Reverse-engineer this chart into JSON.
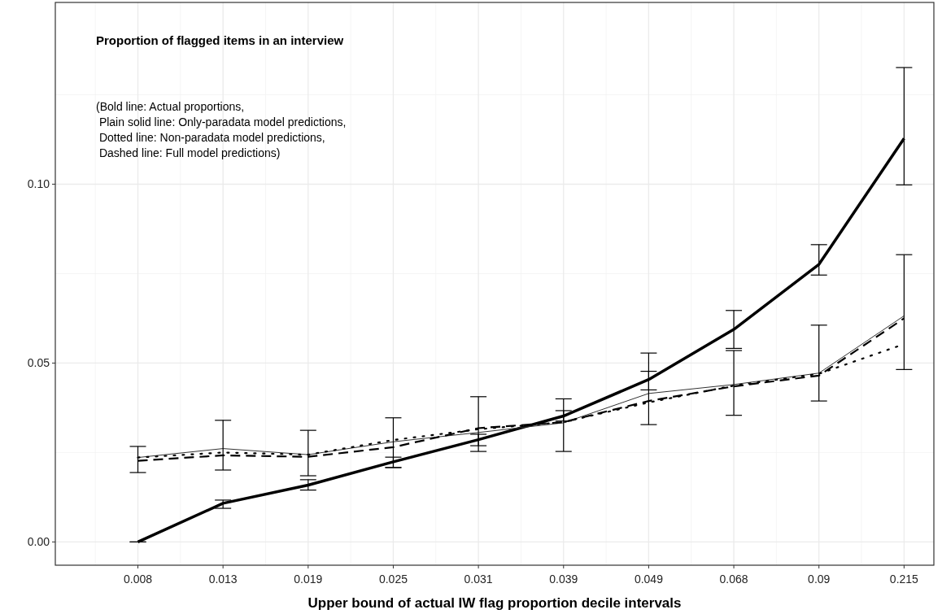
{
  "chart_data": {
    "type": "line",
    "title": "Proportion of flagged items in an interview",
    "annotations": [
      "(Bold line: Actual proportions,\n Plain solid line: Only-paradata model predictions,\n Dotted line: Non-paradata model predictions,\n Dashed line: Full model predictions)"
    ],
    "xlabel": "Upper bound of actual IW flag proportion decile intervals",
    "categories": [
      "0.008",
      "0.013",
      "0.019",
      "0.025",
      "0.031",
      "0.039",
      "0.049",
      "0.068",
      "0.09",
      "0.215"
    ],
    "ylim": [
      -0.0065,
      0.1508
    ],
    "yticks": [
      {
        "value": 0,
        "label": "0.00"
      },
      {
        "value": 0.05,
        "label": "0.05"
      },
      {
        "value": 0.1,
        "label": "0.10"
      }
    ],
    "grid": true,
    "series": [
      {
        "color": "#000000",
        "line_style": "solid",
        "values": [
          0,
          0.0108,
          0.0159,
          0.0224,
          0.0286,
          0.0352,
          0.0454,
          0.0594,
          0.0776,
          0.1128
        ],
        "errors": [
          [
            0,
            0
          ],
          [
            0.0094,
            0.0117
          ],
          [
            0.0145,
            0.0174
          ],
          [
            0.0208,
            0.0237
          ],
          [
            0.0269,
            0.0301
          ],
          [
            0.0338,
            0.0367
          ],
          [
            0.0425,
            0.0477
          ],
          [
            0.0541,
            0.0647
          ],
          [
            0.0746,
            0.0831
          ],
          [
            0.0998,
            0.1326
          ]
        ]
      },
      {
        "color": "#333333",
        "line_style": "solid",
        "values": [
          0.0236,
          0.0261,
          0.0244,
          0.028,
          0.0306,
          0.0333,
          0.0415,
          0.044,
          0.0472,
          0.0632
        ],
        "errors": [
          [
            0.0194,
            0.0267
          ],
          [
            0.0201,
            0.034
          ],
          [
            0.0185,
            0.0312
          ],
          [
            0.0208,
            0.0347
          ],
          [
            0.0253,
            0.0406
          ],
          [
            0.0253,
            0.04
          ],
          [
            0.0328,
            0.0528
          ],
          [
            0.0354,
            0.0535
          ],
          [
            0.0394,
            0.0606
          ],
          [
            0.0482,
            0.0803
          ]
        ]
      },
      {
        "color": "#000000",
        "line_style": "dotted",
        "values": [
          0.0236,
          0.025,
          0.0244,
          0.0285,
          0.0315,
          0.0335,
          0.039,
          0.0437,
          0.047,
          0.0553
        ]
      },
      {
        "color": "#000000",
        "line_style": "dashed",
        "values": [
          0.0227,
          0.0242,
          0.0238,
          0.0265,
          0.0318,
          0.0335,
          0.0394,
          0.0435,
          0.0465,
          0.0625
        ]
      }
    ]
  }
}
